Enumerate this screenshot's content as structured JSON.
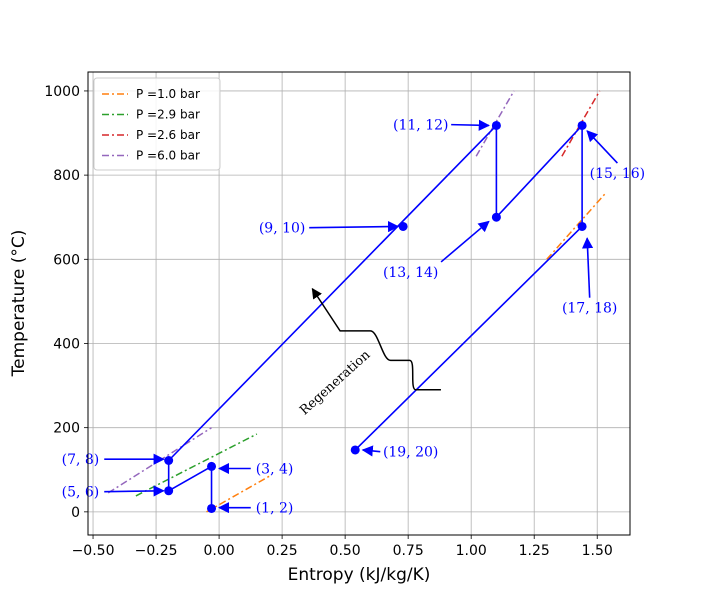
{
  "chart_data": {
    "type": "line",
    "title": "",
    "xlabel": "Entropy (kJ/kg/K)",
    "ylabel": "Temperature (°C)",
    "xlim": [
      -0.52,
      1.63
    ],
    "ylim": [
      -55,
      1045
    ],
    "xticks": [
      -0.5,
      -0.25,
      0.0,
      0.25,
      0.5,
      0.75,
      1.0,
      1.25,
      1.5
    ],
    "xtick_labels": [
      "−0.50",
      "−0.25",
      "0.00",
      "0.25",
      "0.50",
      "0.75",
      "1.00",
      "1.25",
      "1.50"
    ],
    "yticks": [
      0,
      200,
      400,
      600,
      800,
      1000
    ],
    "ytick_labels": [
      "0",
      "200",
      "400",
      "600",
      "800",
      "1000"
    ],
    "grid": true,
    "legend": {
      "position": "top-left",
      "entries": [
        {
          "label": "P =1.0 bar",
          "color": "#ff7f0e"
        },
        {
          "label": "P =2.9 bar",
          "color": "#2ca02c"
        },
        {
          "label": "P =2.6 bar",
          "color": "#d62728"
        },
        {
          "label": "P =6.0 bar",
          "color": "#9467bd"
        }
      ]
    },
    "isobars": [
      {
        "name": "P =1.0 bar",
        "color": "#ff7f0e",
        "points": [
          [
            -0.05,
            0
          ],
          [
            0.2,
            85
          ]
        ]
      },
      {
        "name": "P =1.0 bar",
        "color": "#ff7f0e",
        "points": [
          [
            1.3,
            600
          ],
          [
            1.53,
            755
          ]
        ]
      },
      {
        "name": "P =2.9 bar",
        "color": "#2ca02c",
        "points": [
          [
            -0.33,
            38
          ],
          [
            0.15,
            185
          ]
        ]
      },
      {
        "name": "P =2.6 bar",
        "color": "#d62728",
        "points": [
          [
            1.36,
            845
          ],
          [
            1.51,
            1000
          ]
        ]
      },
      {
        "name": "P =6.0 bar",
        "color": "#9467bd",
        "points": [
          [
            -0.44,
            45
          ],
          [
            -0.03,
            200
          ]
        ]
      },
      {
        "name": "P =6.0 bar",
        "color": "#9467bd",
        "points": [
          [
            1.02,
            845
          ],
          [
            1.17,
            1000
          ]
        ]
      }
    ],
    "cycle_color": "#0000ff",
    "cycle_segments": [
      [
        [
          -0.03,
          8
        ],
        [
          -0.03,
          108
        ]
      ],
      [
        [
          -0.03,
          108
        ],
        [
          -0.2,
          50
        ]
      ],
      [
        [
          -0.2,
          50
        ],
        [
          -0.2,
          122
        ]
      ],
      [
        [
          -0.2,
          122
        ],
        [
          1.1,
          918
        ]
      ],
      [
        [
          1.1,
          918
        ],
        [
          1.1,
          700
        ]
      ],
      [
        [
          1.1,
          700
        ],
        [
          1.44,
          918
        ]
      ],
      [
        [
          1.44,
          918
        ],
        [
          1.44,
          678
        ]
      ],
      [
        [
          1.44,
          678
        ],
        [
          0.54,
          147
        ]
      ]
    ],
    "points": [
      {
        "label": "$(1,2)$",
        "x": -0.03,
        "y": 8
      },
      {
        "label": "$(3,4)$",
        "x": -0.03,
        "y": 108
      },
      {
        "label": "$(5,6)$",
        "x": -0.2,
        "y": 50
      },
      {
        "label": "$(7,8)$",
        "x": -0.2,
        "y": 122
      },
      {
        "label": "$(9,10)$",
        "x": 0.73,
        "y": 678
      },
      {
        "label": "$(11,12)$",
        "x": 1.1,
        "y": 918
      },
      {
        "label": "$(13,14)$",
        "x": 1.1,
        "y": 700
      },
      {
        "label": "$(15,16)$",
        "x": 1.44,
        "y": 918
      },
      {
        "label": "$(17,18)$",
        "x": 1.44,
        "y": 678
      },
      {
        "label": "$(19,20)$",
        "x": 0.54,
        "y": 147
      }
    ],
    "annotations": [
      {
        "text": "(1, 2)",
        "text_x": 0.22,
        "text_y": 10,
        "arrow_to": [
          0.0,
          10
        ]
      },
      {
        "text": "(3, 4)",
        "text_x": 0.22,
        "text_y": 103,
        "arrow_to": [
          0.0,
          103
        ]
      },
      {
        "text": "(5, 6)",
        "text_x": -0.55,
        "text_y": 48,
        "arrow_to": [
          -0.22,
          50
        ]
      },
      {
        "text": "(7, 8)",
        "text_x": -0.55,
        "text_y": 125,
        "arrow_to": [
          -0.22,
          125
        ]
      },
      {
        "text": "(9, 10)",
        "text_x": 0.25,
        "text_y": 675,
        "arrow_to": [
          0.71,
          678
        ]
      },
      {
        "text": "(11, 12)",
        "text_x": 0.8,
        "text_y": 920,
        "arrow_to": [
          1.07,
          918
        ]
      },
      {
        "text": "(13, 14)",
        "text_x": 0.76,
        "text_y": 570,
        "arrow_to": [
          1.07,
          690
        ]
      },
      {
        "text": "(15, 16)",
        "text_x": 1.58,
        "text_y": 805,
        "arrow_to": [
          1.46,
          905
        ]
      },
      {
        "text": "(17, 18)",
        "text_x": 1.47,
        "text_y": 485,
        "arrow_to": [
          1.46,
          650
        ]
      },
      {
        "text": "(19, 20)",
        "text_x": 0.76,
        "text_y": 143,
        "arrow_to": [
          0.57,
          147
        ]
      }
    ],
    "regeneration": {
      "text": "Regeneration",
      "curve": [
        [
          0.88,
          290
        ],
        [
          0.78,
          290
        ],
        [
          0.78,
          360
        ],
        [
          0.68,
          360
        ],
        [
          0.6,
          430
        ],
        [
          0.48,
          430
        ],
        [
          0.37,
          530
        ]
      ]
    }
  }
}
